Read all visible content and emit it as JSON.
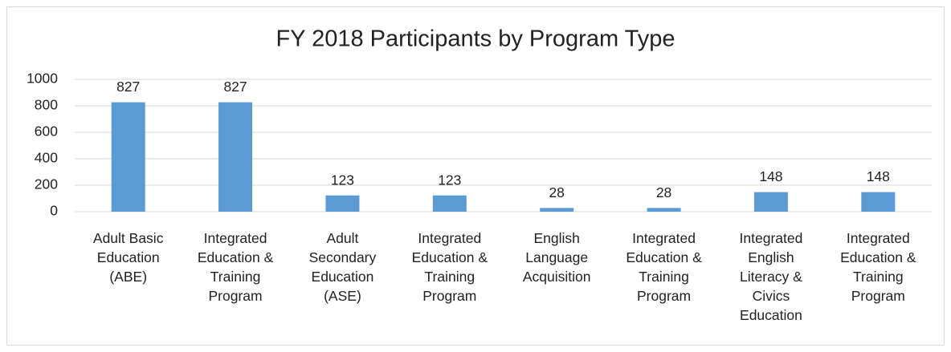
{
  "chart_data": {
    "type": "bar",
    "title": "FY 2018 Participants by Program Type",
    "categories": [
      "Adult Basic Education (ABE)",
      "Integrated Education & Training Program",
      "Adult Secondary Education (ASE)",
      "Integrated Education & Training Program",
      "English Language Acquisition",
      "Integrated Education & Training Program",
      "Integrated English Literacy & Civics Education",
      "Integrated Education & Training Program"
    ],
    "values": [
      827,
      827,
      123,
      123,
      28,
      28,
      148,
      148
    ],
    "color": "#5b9bd5",
    "ylim": [
      0,
      1000
    ],
    "yticks": [
      0,
      200,
      400,
      600,
      800,
      1000
    ],
    "grid": true
  }
}
